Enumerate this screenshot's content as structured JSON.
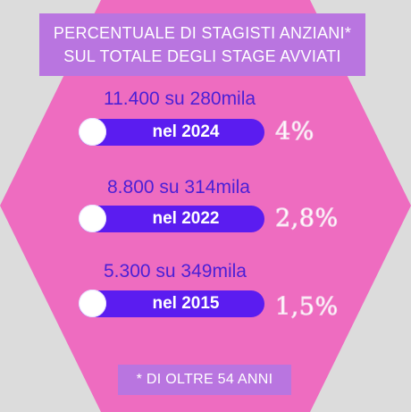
{
  "title": {
    "line1": "PERCENTUALE DI STAGISTI ANZIANI*",
    "line2": "SUL TOTALE DEGLI STAGE AVVIATI"
  },
  "rows": [
    {
      "count": "11.400",
      "total": "su 280mila",
      "year": "nel 2024",
      "percent": "4%"
    },
    {
      "count": "8.800",
      "total": "su 314mila",
      "year": "nel 2022",
      "percent": "2,8%"
    },
    {
      "count": "5.300",
      "total": "su 349mila",
      "year": "nel 2015",
      "percent": "1,5%"
    }
  ],
  "footnote": "* DI OLTRE 54 ANNI",
  "colors": {
    "background": "#dcdcdc",
    "hexagon": "#ee6cc0",
    "label_box": "#b975e0",
    "pill": "#5b1cf0",
    "count_text": "#4a1fd6"
  }
}
